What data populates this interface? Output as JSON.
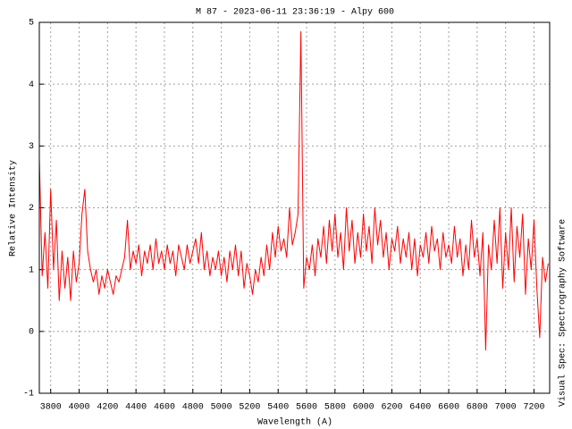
{
  "chart_data": {
    "type": "line",
    "title": "M 87 - 2023-06-11 23:36:19 - Alpy 600",
    "x_label": "Wavelength (A)",
    "y_label": "Relative Intensity",
    "side_note": "Visual Spec: Spectrography Software",
    "grid": true,
    "xlim": [
      3720,
      7310
    ],
    "ylim": [
      -1,
      5
    ],
    "xticks": [
      3800,
      4000,
      4200,
      4400,
      4600,
      4800,
      5000,
      5200,
      5400,
      5600,
      5800,
      6000,
      6200,
      6400,
      6600,
      6800,
      7000,
      7200
    ],
    "yticks": [
      -1,
      0,
      1,
      2,
      3,
      4,
      5
    ],
    "x": [
      3720,
      3740,
      3760,
      3780,
      3800,
      3820,
      3840,
      3860,
      3880,
      3900,
      3920,
      3940,
      3960,
      3980,
      4000,
      4020,
      4040,
      4060,
      4080,
      4100,
      4120,
      4140,
      4160,
      4180,
      4200,
      4220,
      4240,
      4260,
      4280,
      4300,
      4320,
      4340,
      4360,
      4380,
      4400,
      4420,
      4440,
      4460,
      4480,
      4500,
      4520,
      4540,
      4560,
      4580,
      4600,
      4620,
      4640,
      4660,
      4680,
      4700,
      4720,
      4740,
      4760,
      4780,
      4800,
      4820,
      4840,
      4860,
      4880,
      4900,
      4920,
      4940,
      4960,
      4980,
      5000,
      5020,
      5040,
      5060,
      5080,
      5100,
      5120,
      5140,
      5160,
      5180,
      5200,
      5220,
      5240,
      5260,
      5280,
      5300,
      5320,
      5340,
      5360,
      5380,
      5400,
      5420,
      5440,
      5460,
      5480,
      5500,
      5520,
      5540,
      5560,
      5580,
      5600,
      5620,
      5640,
      5660,
      5680,
      5700,
      5720,
      5740,
      5760,
      5780,
      5800,
      5820,
      5840,
      5860,
      5880,
      5900,
      5920,
      5940,
      5960,
      5980,
      6000,
      6020,
      6040,
      6060,
      6080,
      6100,
      6120,
      6140,
      6160,
      6180,
      6200,
      6220,
      6240,
      6260,
      6280,
      6300,
      6320,
      6340,
      6360,
      6380,
      6400,
      6420,
      6440,
      6460,
      6480,
      6500,
      6520,
      6540,
      6560,
      6580,
      6600,
      6620,
      6640,
      6660,
      6680,
      6700,
      6720,
      6740,
      6760,
      6780,
      6800,
      6820,
      6840,
      6860,
      6880,
      6900,
      6920,
      6940,
      6960,
      6980,
      7000,
      7020,
      7040,
      7060,
      7080,
      7100,
      7120,
      7140,
      7160,
      7180,
      7200,
      7220,
      7240,
      7260,
      7280,
      7300
    ],
    "series": [
      {
        "name": "M 87",
        "color": "#ff0000",
        "values": [
          2.8,
          0.9,
          1.6,
          0.7,
          2.3,
          1.0,
          1.8,
          0.5,
          1.3,
          0.7,
          1.2,
          0.5,
          1.3,
          0.8,
          1.1,
          1.9,
          2.3,
          1.3,
          1.0,
          0.8,
          1.0,
          0.6,
          0.9,
          0.7,
          1.0,
          0.8,
          0.6,
          0.9,
          0.8,
          1.0,
          1.2,
          1.8,
          1.0,
          1.3,
          1.1,
          1.4,
          0.9,
          1.3,
          1.1,
          1.4,
          1.0,
          1.5,
          1.1,
          1.3,
          1.0,
          1.4,
          1.1,
          1.3,
          0.9,
          1.4,
          1.2,
          1.0,
          1.4,
          1.1,
          1.3,
          1.5,
          1.1,
          1.6,
          1.0,
          1.3,
          0.9,
          1.2,
          1.0,
          1.3,
          0.9,
          1.2,
          0.8,
          1.3,
          1.0,
          1.4,
          0.9,
          1.3,
          0.7,
          1.1,
          0.9,
          0.6,
          1.0,
          0.8,
          1.2,
          0.9,
          1.4,
          1.0,
          1.6,
          1.2,
          1.7,
          1.3,
          1.5,
          1.2,
          2.0,
          1.4,
          1.6,
          1.9,
          4.85,
          0.7,
          1.2,
          1.0,
          1.4,
          0.9,
          1.5,
          1.2,
          1.7,
          1.1,
          1.8,
          1.3,
          1.9,
          1.2,
          1.6,
          1.0,
          2.0,
          1.3,
          1.8,
          1.1,
          1.6,
          1.2,
          1.9,
          1.3,
          1.7,
          1.1,
          2.0,
          1.4,
          1.8,
          1.2,
          1.6,
          1.0,
          1.5,
          1.3,
          1.7,
          1.1,
          1.5,
          1.2,
          1.6,
          1.0,
          1.5,
          0.9,
          1.4,
          1.2,
          1.6,
          1.1,
          1.7,
          1.3,
          1.5,
          1.0,
          1.6,
          1.2,
          1.4,
          1.1,
          1.7,
          1.2,
          1.5,
          0.9,
          1.4,
          1.0,
          1.8,
          1.2,
          1.5,
          0.9,
          1.6,
          -0.3,
          1.4,
          1.0,
          1.8,
          1.1,
          2.0,
          0.7,
          1.6,
          1.0,
          2.0,
          0.8,
          1.7,
          1.2,
          1.9,
          0.6,
          1.5,
          1.0,
          1.8,
          0.7,
          -0.1,
          1.2,
          0.8,
          1.1
        ]
      }
    ]
  }
}
